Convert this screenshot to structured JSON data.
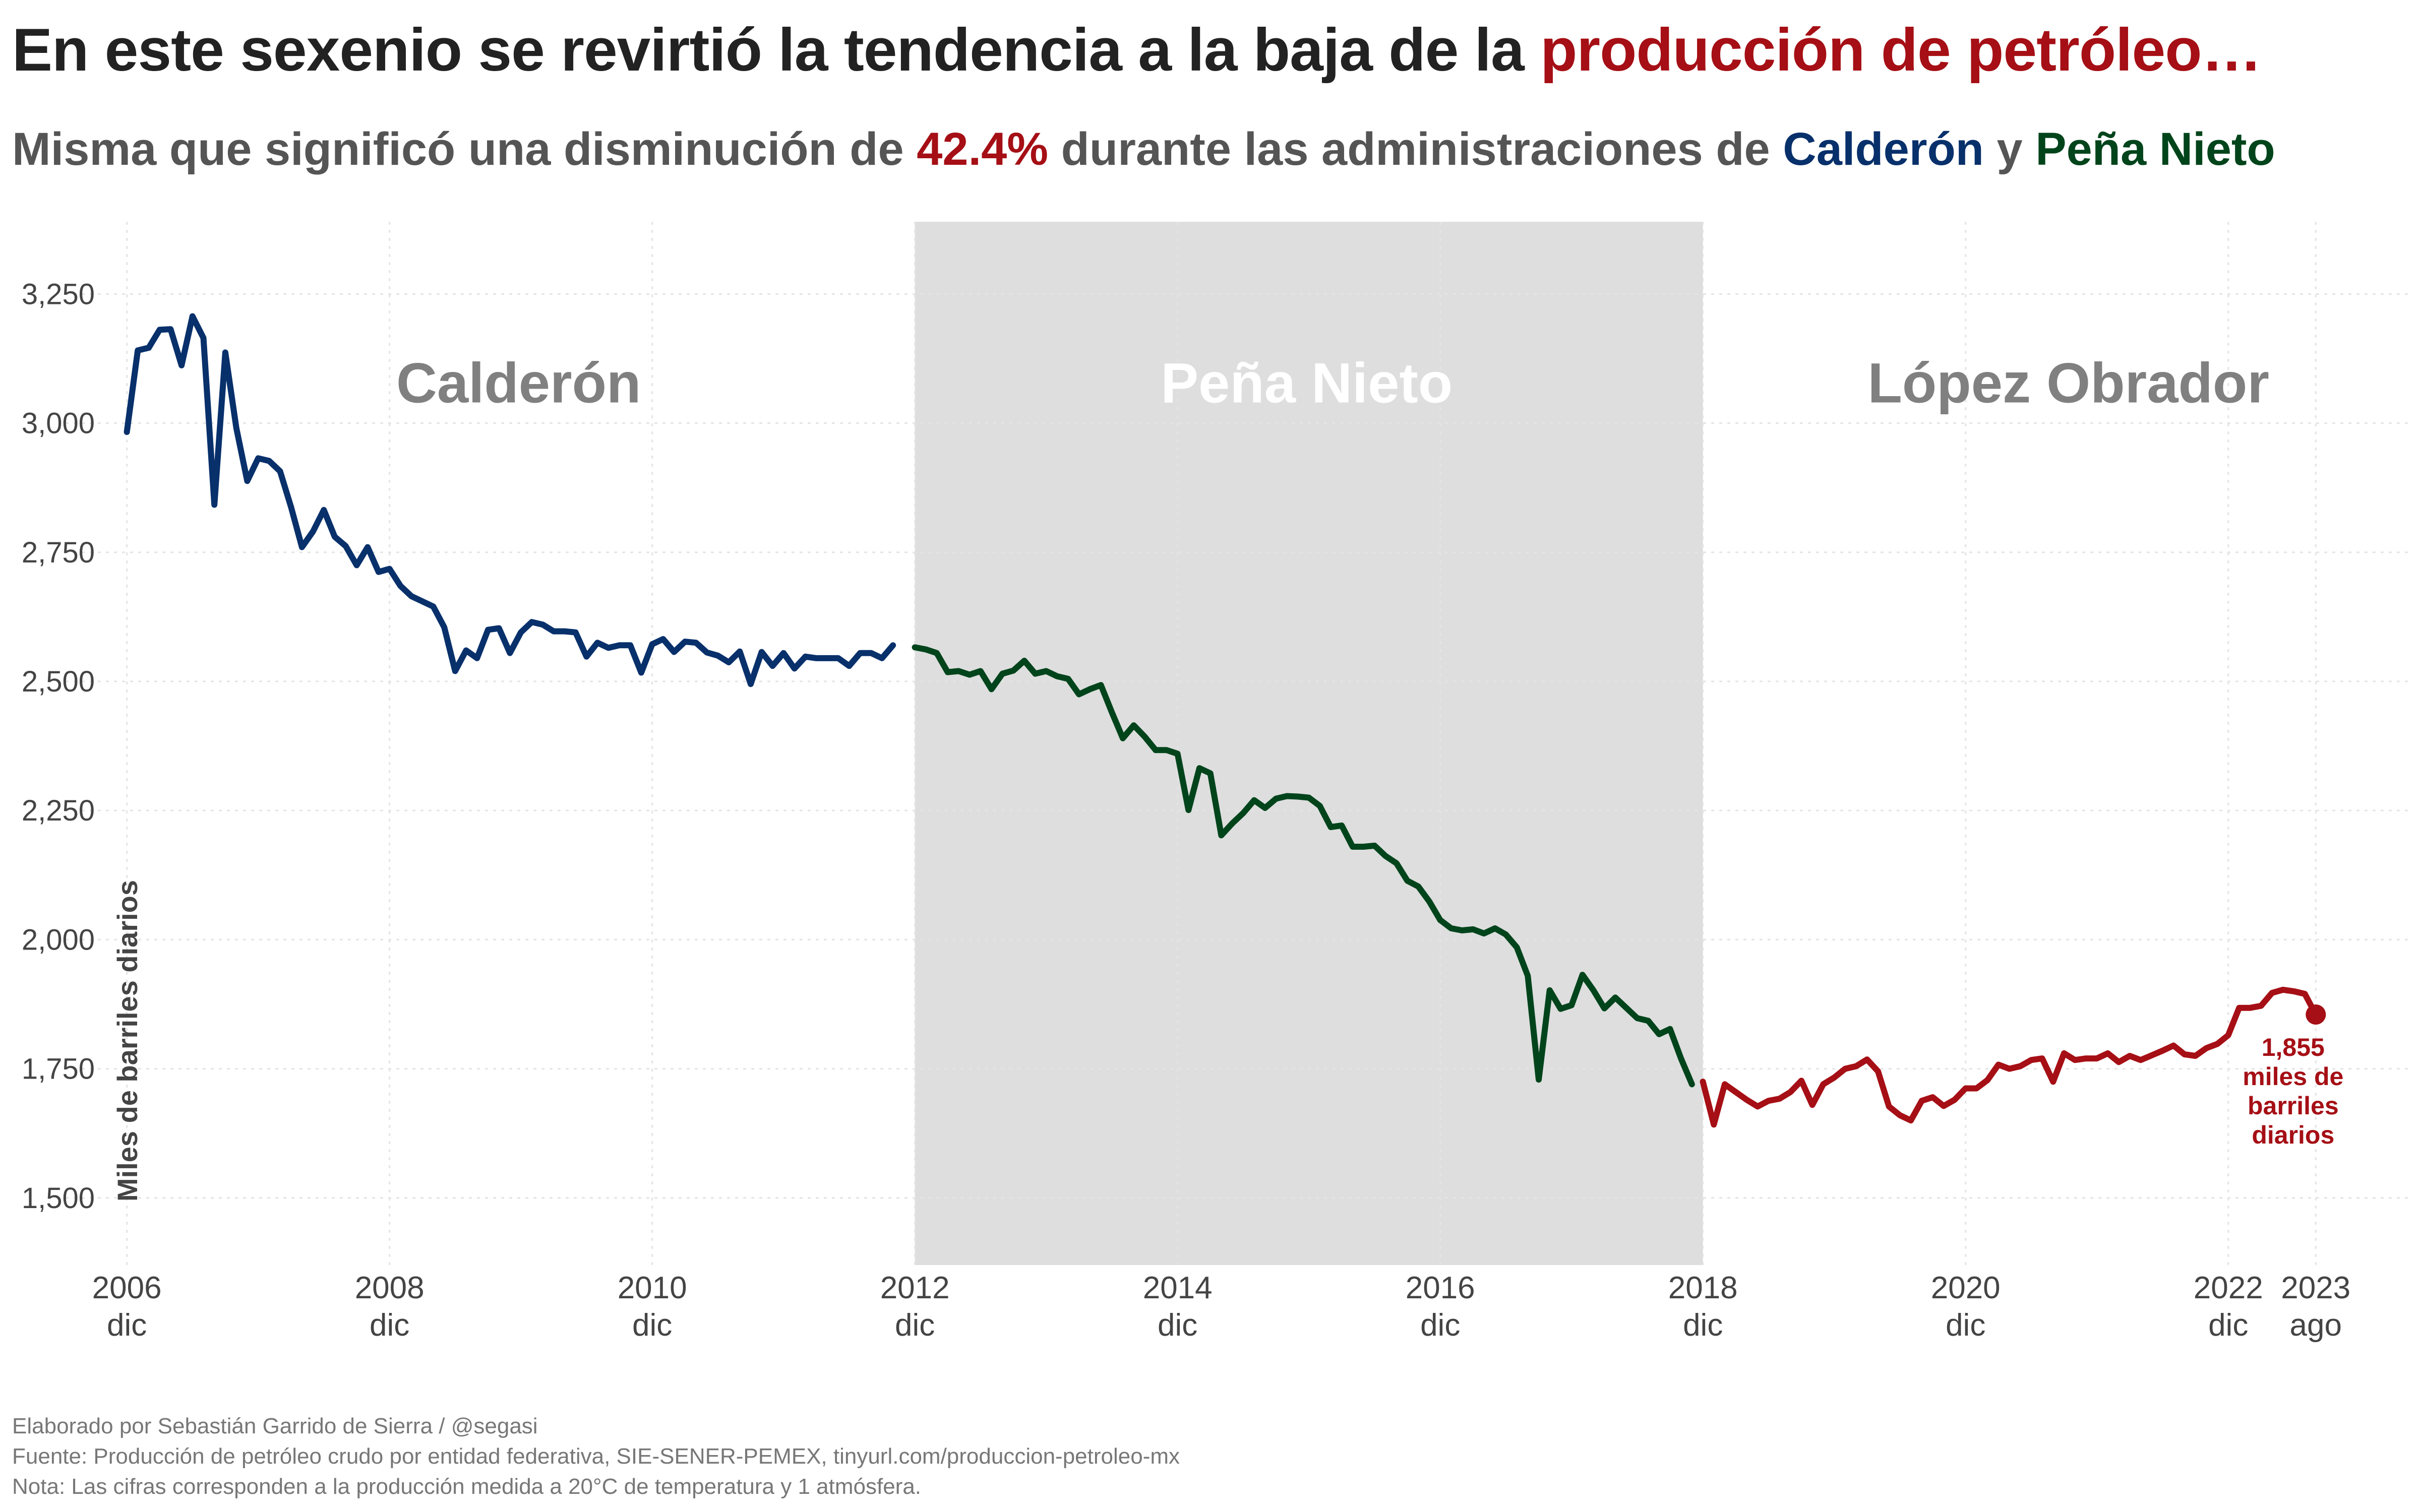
{
  "title": {
    "text_before": "En este sexenio se revirtió la tendencia a la baja de la ",
    "text_highlight": "producción de petróleo…",
    "highlight_color": "#a50f15"
  },
  "subtitle": {
    "part1": "Misma que significó una disminución de ",
    "pct": "42.4%",
    "part2": " durante las administraciones de ",
    "calderon": "Calderón",
    "and": " y ",
    "pena_nieto": "Peña Nieto"
  },
  "footer": {
    "line1": "Elaborado por Sebastián Garrido de Sierra / @segasi",
    "line2": "Fuente: Producción de petróleo crudo por entidad federativa, SIE-SENER-PEMEX, tinyurl.com/produccion-petroleo-mx",
    "line3": "Nota: Las cifras corresponden a la producción medida a 20°C de temperatura y 1 atmósfera."
  },
  "chart_data": {
    "type": "line",
    "ylabel": "Miles de barriles diarios",
    "ylim": [
      1370,
      3390
    ],
    "yticks": [
      1500,
      1750,
      2000,
      2250,
      2500,
      2750,
      3000,
      3250
    ],
    "ytick_labels": [
      "1,500",
      "1,750",
      "2,000",
      "2,250",
      "2,500",
      "2,750",
      "3,000",
      "3,250"
    ],
    "x_range_years": [
      2006.45,
      2024.3
    ],
    "xticks": [
      {
        "x": 2006.917,
        "year": "2006",
        "month": "dic"
      },
      {
        "x": 2008.917,
        "year": "2008",
        "month": "dic"
      },
      {
        "x": 2010.917,
        "year": "2010",
        "month": "dic"
      },
      {
        "x": 2012.917,
        "year": "2012",
        "month": "dic"
      },
      {
        "x": 2014.917,
        "year": "2014",
        "month": "dic"
      },
      {
        "x": 2016.917,
        "year": "2016",
        "month": "dic"
      },
      {
        "x": 2018.917,
        "year": "2018",
        "month": "dic"
      },
      {
        "x": 2020.917,
        "year": "2020",
        "month": "dic"
      },
      {
        "x": 2022.917,
        "year": "2022",
        "month": "dic"
      },
      {
        "x": 2023.583,
        "year": "2023",
        "month": "ago"
      }
    ],
    "grid": true,
    "shaded_region": {
      "x0": 2012.917,
      "x1": 2018.917,
      "color": "#dedede"
    },
    "eras": [
      {
        "label": "Calderón",
        "x": 2009.9,
        "color": "#808080"
      },
      {
        "label": "Peña Nieto",
        "x": 2015.9,
        "color": "#ffffff"
      },
      {
        "label": "López Obrador",
        "x": 2021.7,
        "color": "#808080"
      }
    ],
    "series": [
      {
        "color": "#08306b",
        "start": "2006-12",
        "values": [
          2983,
          3141,
          3146,
          3181,
          3182,
          3112,
          3207,
          3165,
          2842,
          3137,
          2991,
          2888,
          2932,
          2927,
          2907,
          2838,
          2760,
          2790,
          2832,
          2780,
          2762,
          2725,
          2760,
          2712,
          2718,
          2685,
          2665,
          2655,
          2645,
          2605,
          2520,
          2560,
          2545,
          2600,
          2603,
          2555,
          2595,
          2615,
          2610,
          2597,
          2597,
          2595,
          2548,
          2575,
          2565,
          2570,
          2570,
          2517,
          2572,
          2582,
          2557,
          2577,
          2575,
          2556,
          2550,
          2537,
          2558,
          2495,
          2557,
          2530,
          2555,
          2525,
          2548,
          2545,
          2545,
          2545,
          2530,
          2555,
          2555,
          2545,
          2570
        ]
      },
      {
        "color": "#00441b",
        "start": "2012-12",
        "values": [
          2566,
          2562,
          2555,
          2518,
          2520,
          2513,
          2520,
          2485,
          2515,
          2521,
          2540,
          2515,
          2520,
          2510,
          2505,
          2475,
          2485,
          2493,
          2440,
          2390,
          2415,
          2393,
          2367,
          2367,
          2360,
          2251,
          2332,
          2322,
          2202,
          2225,
          2245,
          2270,
          2255,
          2273,
          2278,
          2277,
          2275,
          2259,
          2218,
          2221,
          2180,
          2180,
          2182,
          2162,
          2148,
          2114,
          2103,
          2074,
          2038,
          2022,
          2018,
          2020,
          2012,
          2022,
          2010,
          1985,
          1930,
          1729,
          1902,
          1866,
          1873,
          1932,
          1902,
          1867,
          1888,
          1868,
          1848,
          1843,
          1817,
          1827,
          1770,
          1720
        ]
      },
      {
        "color": "#a50f15",
        "start": "2018-12",
        "values": [
          1725,
          1642,
          1720,
          1705,
          1690,
          1677,
          1688,
          1692,
          1705,
          1727,
          1680,
          1720,
          1733,
          1750,
          1755,
          1768,
          1745,
          1677,
          1660,
          1650,
          1688,
          1695,
          1678,
          1690,
          1712,
          1712,
          1728,
          1758,
          1750,
          1755,
          1767,
          1770,
          1725,
          1780,
          1767,
          1770,
          1770,
          1780,
          1763,
          1775,
          1767,
          1776,
          1785,
          1795,
          1778,
          1775,
          1790,
          1798,
          1815,
          1868,
          1868,
          1872,
          1897,
          1903,
          1900,
          1895,
          1855
        ]
      }
    ],
    "end_point": {
      "x": "2023-08",
      "value": 1855,
      "label_lines": [
        "1,855",
        "miles de",
        "barriles",
        "diarios"
      ]
    }
  }
}
